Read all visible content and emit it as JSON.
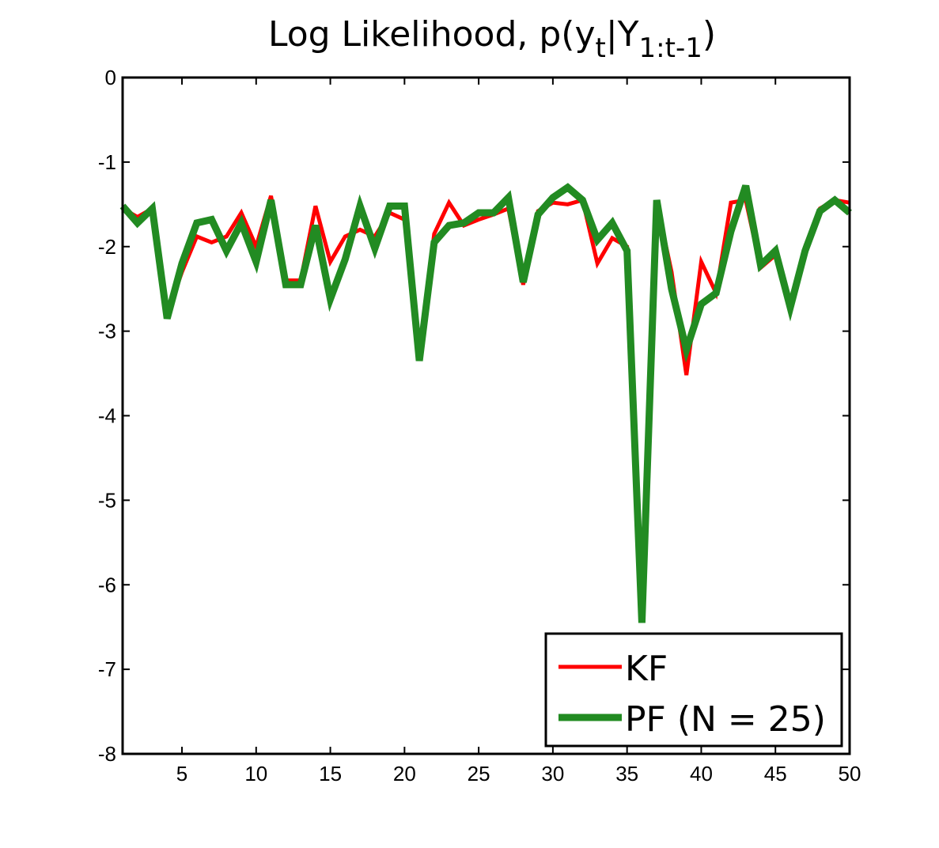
{
  "chart_data": {
    "type": "line",
    "title_parts": {
      "pre": "Log Likelihood, p(y",
      "sub1": "t",
      "mid": "|Y",
      "sub2": "1:t-1",
      "post": ")"
    },
    "xlabel": "",
    "ylabel": "",
    "xlim": [
      1,
      50
    ],
    "ylim": [
      -8,
      0
    ],
    "xticks": [
      5,
      10,
      15,
      20,
      25,
      30,
      35,
      40,
      45,
      50
    ],
    "yticks": [
      0,
      -1,
      -2,
      -3,
      -4,
      -5,
      -6,
      -7,
      -8
    ],
    "grid": false,
    "legend_position": "bottom-right",
    "x": [
      1,
      2,
      3,
      4,
      5,
      6,
      7,
      8,
      9,
      10,
      11,
      12,
      13,
      14,
      15,
      16,
      17,
      18,
      19,
      20,
      21,
      22,
      23,
      24,
      25,
      26,
      27,
      28,
      29,
      30,
      31,
      32,
      33,
      34,
      35,
      36,
      37,
      38,
      39,
      40,
      41,
      42,
      43,
      44,
      45,
      46,
      47,
      48,
      49,
      50
    ],
    "series": [
      {
        "name": "KF",
        "color": "#ff0000",
        "values": [
          -1.55,
          -1.65,
          -1.55,
          -2.8,
          -2.3,
          -1.88,
          -1.95,
          -1.88,
          -1.6,
          -2.0,
          -1.4,
          -2.4,
          -2.4,
          -1.52,
          -2.18,
          -1.88,
          -1.8,
          -1.88,
          -1.6,
          -1.68,
          -3.3,
          -1.85,
          -1.48,
          -1.75,
          -1.68,
          -1.62,
          -1.55,
          -2.45,
          -1.58,
          -1.48,
          -1.5,
          -1.45,
          -2.2,
          -1.9,
          -2.0,
          -6.38,
          -1.48,
          -2.3,
          -3.52,
          -2.18,
          -2.55,
          -1.48,
          -1.45,
          -2.25,
          -2.1,
          -2.72,
          -2.0,
          -1.55,
          -1.45,
          -1.48
        ]
      },
      {
        "name": "PF (N = 25)",
        "color": "#228b22",
        "values": [
          -1.52,
          -1.72,
          -1.55,
          -2.85,
          -2.2,
          -1.72,
          -1.68,
          -2.05,
          -1.72,
          -2.18,
          -1.45,
          -2.45,
          -2.45,
          -1.75,
          -2.62,
          -2.15,
          -1.52,
          -2.02,
          -1.52,
          -1.52,
          -3.35,
          -1.95,
          -1.75,
          -1.72,
          -1.6,
          -1.6,
          -1.42,
          -2.42,
          -1.62,
          -1.42,
          -1.3,
          -1.45,
          -1.92,
          -1.72,
          -2.05,
          -6.45,
          -1.45,
          -2.5,
          -3.22,
          -2.68,
          -2.55,
          -1.82,
          -1.28,
          -2.22,
          -2.05,
          -2.72,
          -2.05,
          -1.58,
          -1.45,
          -1.6
        ]
      }
    ]
  }
}
